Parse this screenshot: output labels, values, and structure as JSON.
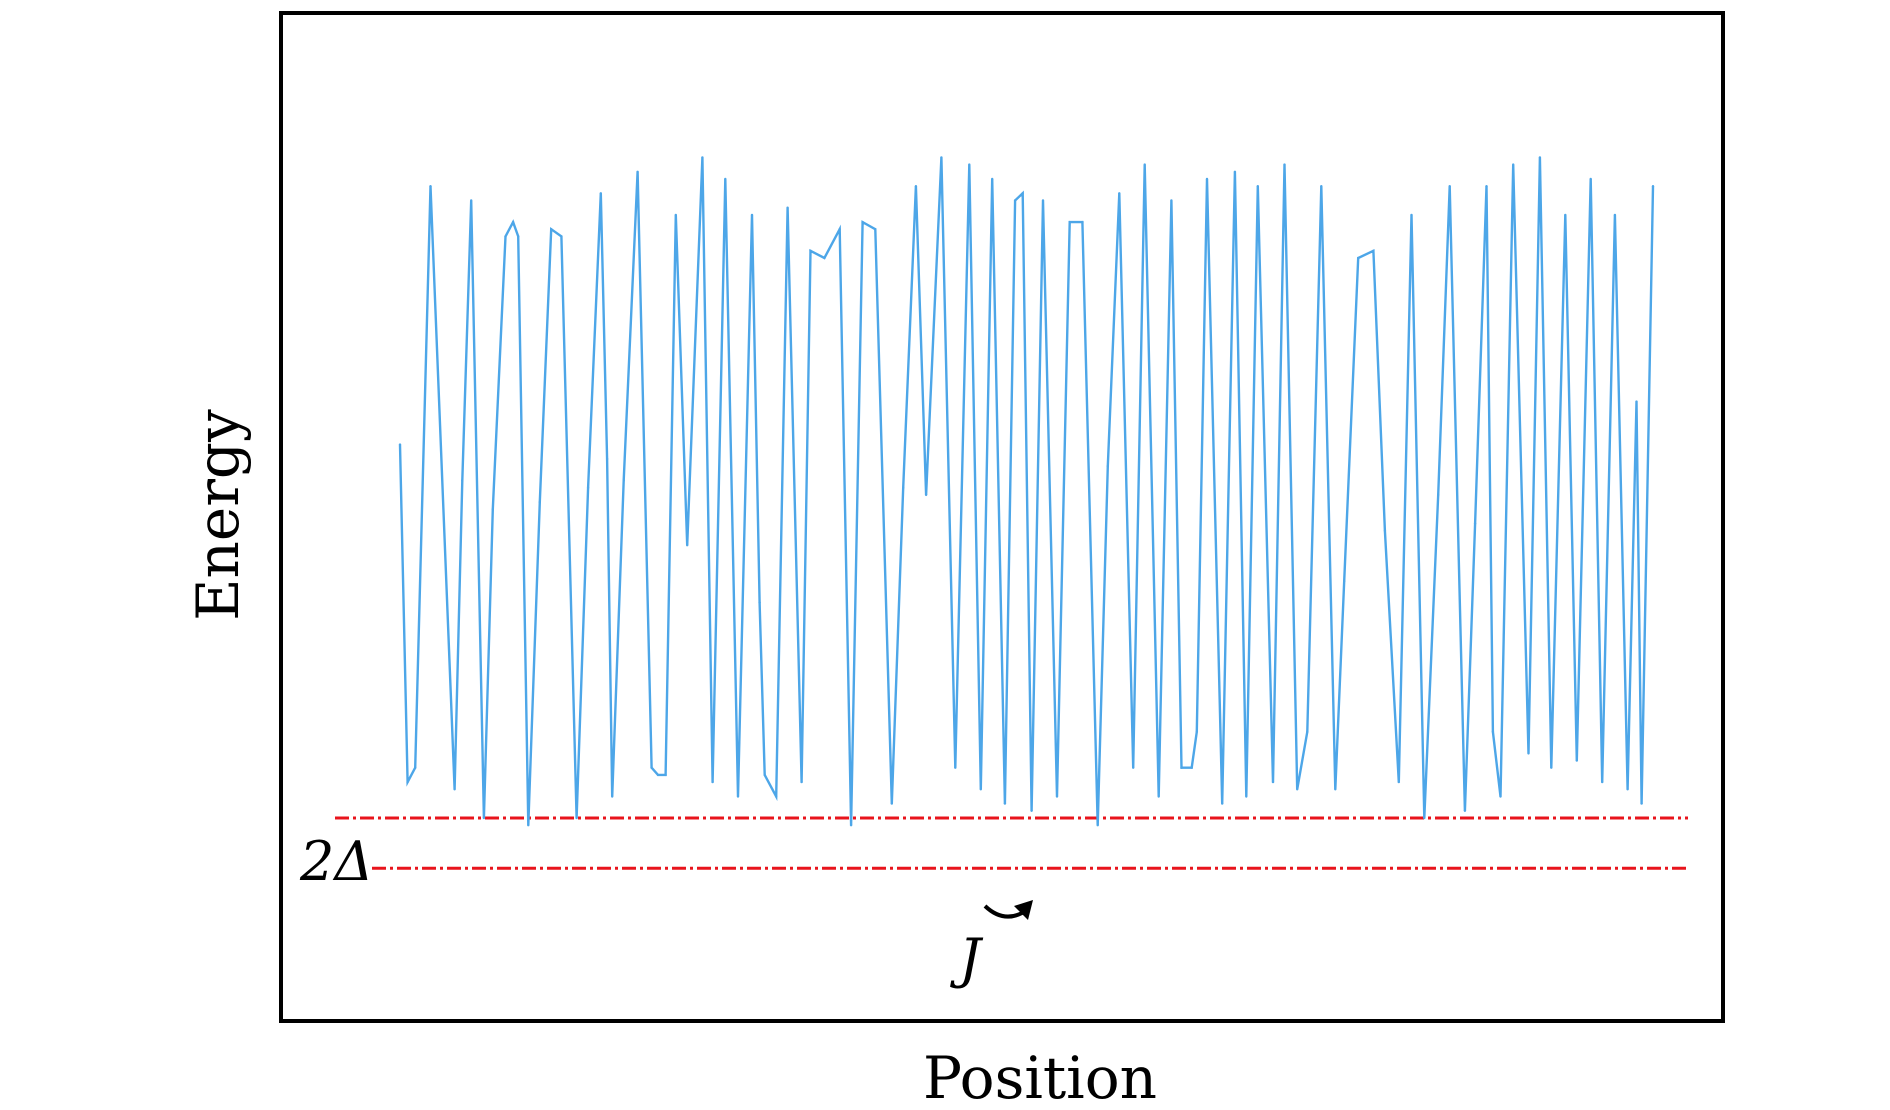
{
  "chart_data": {
    "type": "line",
    "title": "",
    "xlabel": "Position",
    "ylabel": "Energy",
    "grid": false,
    "legend": "none",
    "ylim": [
      0,
      1
    ],
    "series": [
      {
        "color": "#4da6e8",
        "x": [
          0,
          0.3,
          0.6,
          1.2,
          2.15,
          2.45,
          2.8,
          3.3,
          3.65,
          4.15,
          4.45,
          4.65,
          5.05,
          5.5,
          5.95,
          6.35,
          6.95,
          7.4,
          7.9,
          8.15,
          8.35,
          8.8,
          9.35,
          9.9,
          10.15,
          10.45,
          10.85,
          11.3,
          11.9,
          12.3,
          12.8,
          13.3,
          13.85,
          14.15,
          14.35,
          14.8,
          15.25,
          15.8,
          16.15,
          16.7,
          17.3,
          17.75,
          18.2,
          18.7,
          19.35,
          19.8,
          20.3,
          20.7,
          21.3,
          21.85,
          22.4,
          22.85,
          23.3,
          23.8,
          24.2,
          24.5,
          24.85,
          25.3,
          25.85,
          26.35,
          26.85,
          27.45,
          27.85,
          28.3,
          28.85,
          29.3,
          29.85,
          30.35,
          30.75,
          31.15,
          31.35,
          31.75,
          32.35,
          32.85,
          33.3,
          33.75,
          34.35,
          34.8,
          35.3,
          35.7,
          36.25,
          36.8,
          37.15,
          37.7,
          38.3,
          38.75,
          39.3,
          39.8,
          40.3,
          40.85,
          41.3,
          41.9,
          42.3,
          42.75,
          43.0,
          43.3,
          43.8,
          44.4,
          44.85,
          45.3,
          45.85,
          46.3,
          46.85,
          47.3,
          47.8,
          48.3,
          48.65,
          48.85,
          49.3
        ],
        "values": [
          0.52,
          0.05,
          0.07,
          0.88,
          0.04,
          0.47,
          0.86,
          0.0,
          0.43,
          0.81,
          0.83,
          0.81,
          -0.01,
          0.44,
          0.82,
          0.81,
          0.0,
          0.46,
          0.87,
          0.5,
          0.03,
          0.47,
          0.9,
          0.07,
          0.06,
          0.06,
          0.84,
          0.38,
          0.92,
          0.05,
          0.89,
          0.03,
          0.84,
          0.3,
          0.06,
          0.03,
          0.85,
          0.05,
          0.79,
          0.78,
          0.82,
          -0.01,
          0.83,
          0.82,
          0.02,
          0.46,
          0.88,
          0.45,
          0.92,
          0.07,
          0.91,
          0.04,
          0.89,
          0.02,
          0.86,
          0.87,
          0.01,
          0.86,
          0.03,
          0.83,
          0.83,
          -0.01,
          0.49,
          0.87,
          0.07,
          0.91,
          0.03,
          0.86,
          0.07,
          0.07,
          0.12,
          0.89,
          0.02,
          0.9,
          0.03,
          0.88,
          0.05,
          0.91,
          0.04,
          0.12,
          0.88,
          0.04,
          0.33,
          0.78,
          0.79,
          0.4,
          0.05,
          0.84,
          0.0,
          0.45,
          0.88,
          0.01,
          0.41,
          0.88,
          0.12,
          0.03,
          0.91,
          0.09,
          0.92,
          0.07,
          0.84,
          0.08,
          0.89,
          0.05,
          0.84,
          0.04,
          0.58,
          0.02,
          0.88
        ]
      }
    ],
    "reference_lines": [
      {
        "style": "dashed",
        "color": "#e8141c",
        "y": 0.0
      },
      {
        "style": "dashed",
        "color": "#e8141c",
        "y": -0.07
      }
    ],
    "annotations": [
      {
        "text": "2Δ",
        "meaning": "gap between the two dashed levels"
      },
      {
        "text": "J",
        "meaning": "curved arrow between adjacent minima"
      }
    ]
  }
}
